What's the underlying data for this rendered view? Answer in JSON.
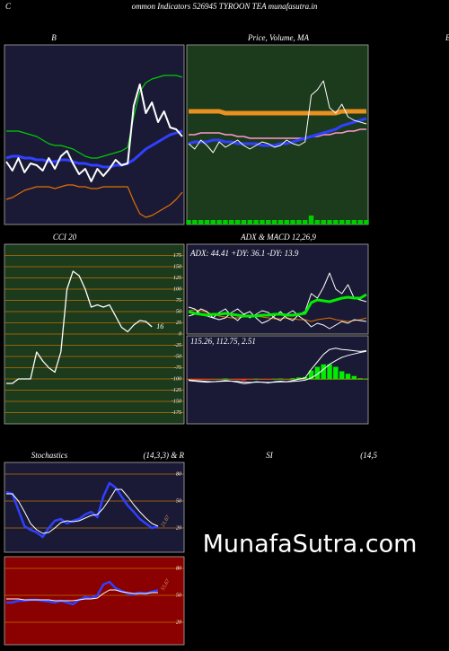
{
  "header": {
    "lead": "C",
    "title": "ommon  Indicators 526945 TYROON  TEA munafasutra.in",
    "edge": "B"
  },
  "watermark": "MunafaSutra.com",
  "chart_data": [
    {
      "type": "line",
      "title": "B",
      "ylim": [
        0,
        100
      ],
      "series": [
        {
          "color": "#00cc00",
          "width": 1.2,
          "values": [
            52,
            52,
            52,
            51,
            50,
            49,
            47,
            45,
            44,
            44,
            43,
            42,
            40,
            38,
            37,
            37,
            38,
            39,
            40,
            41,
            43,
            60,
            74,
            79,
            81,
            82,
            83,
            83,
            83,
            82
          ]
        },
        {
          "color": "#e07000",
          "width": 1.2,
          "values": [
            14,
            15,
            17,
            19,
            20,
            21,
            21,
            21,
            20,
            21,
            22,
            22,
            21,
            21,
            20,
            20,
            21,
            21,
            21,
            21,
            21,
            13,
            6,
            4,
            5,
            7,
            9,
            11,
            14,
            18
          ]
        },
        {
          "color": "#3040ff",
          "width": 3,
          "values": [
            37,
            38,
            38,
            37,
            37,
            36,
            36,
            35,
            35,
            36,
            36,
            35,
            34,
            34,
            33,
            33,
            32,
            32,
            33,
            33,
            34,
            36,
            39,
            42,
            44,
            46,
            48,
            50,
            51,
            52
          ]
        },
        {
          "color": "#ffffff",
          "width": 2,
          "values": [
            35,
            30,
            37,
            29,
            34,
            33,
            30,
            37,
            31,
            38,
            41,
            34,
            28,
            31,
            24,
            31,
            27,
            31,
            36,
            33,
            34,
            66,
            78,
            62,
            68,
            57,
            63,
            54,
            53,
            49
          ]
        }
      ]
    },
    {
      "type": "line",
      "title": "Price,  Volume, MA",
      "ylim": [
        0,
        100
      ],
      "y2lim": [
        0,
        40
      ],
      "series": [
        {
          "color": "#00cc00",
          "type": "bar",
          "axis": "y2",
          "values": [
            1,
            1,
            1,
            1,
            1,
            1,
            1,
            1,
            1,
            1,
            1,
            1,
            1,
            1,
            1,
            1,
            1,
            1,
            1,
            1,
            2,
            1,
            1,
            1,
            1,
            1,
            1,
            1,
            1,
            1
          ]
        },
        {
          "color": "#e89020",
          "width": 5,
          "values": [
            63,
            63,
            63,
            63,
            63,
            63,
            62,
            62,
            62,
            62,
            62,
            62,
            62,
            62,
            62,
            62,
            62,
            62,
            62,
            62,
            62,
            62,
            62,
            62,
            62,
            63,
            63,
            63,
            63,
            63
          ]
        },
        {
          "color": "#ff9ad0",
          "width": 1.5,
          "values": [
            50,
            50,
            51,
            51,
            51,
            51,
            50,
            50,
            49,
            49,
            48,
            48,
            48,
            48,
            48,
            48,
            48,
            48,
            48,
            48,
            49,
            49,
            50,
            50,
            51,
            51,
            52,
            52,
            53,
            53
          ]
        },
        {
          "color": "#3040ff",
          "width": 3,
          "values": [
            45,
            46,
            46,
            46,
            47,
            47,
            46,
            46,
            45,
            45,
            45,
            45,
            44,
            44,
            44,
            45,
            45,
            46,
            47,
            48,
            49,
            50,
            51,
            52,
            53,
            55,
            56,
            57,
            58,
            59
          ]
        },
        {
          "color": "#ffffff",
          "width": 1,
          "values": [
            45,
            42,
            47,
            44,
            40,
            46,
            43,
            45,
            47,
            44,
            42,
            44,
            46,
            45,
            43,
            44,
            47,
            45,
            44,
            46,
            72,
            75,
            80,
            65,
            62,
            67,
            60,
            58,
            57,
            56
          ]
        }
      ]
    },
    {
      "type": "line",
      "title": "CCI 20",
      "ylim": [
        -200,
        200
      ],
      "grid": true,
      "grid_color": "#c07000",
      "end_label": "plain",
      "yticks": [
        175,
        150,
        125,
        100,
        75,
        50,
        25,
        0,
        -25,
        -50,
        -75,
        -100,
        -125,
        -150,
        -175
      ],
      "series": [
        {
          "color": "#ffffff",
          "width": 1.3,
          "values": [
            -110,
            -110,
            -100,
            -100,
            -100,
            -40,
            -60,
            -75,
            -85,
            -40,
            100,
            140,
            130,
            100,
            60,
            65,
            60,
            65,
            40,
            15,
            5,
            20,
            30,
            28,
            16
          ]
        }
      ]
    },
    {
      "type": "line",
      "title": "ADX  & MACD 12,26,9",
      "annotation": "ADX: 44.41  +DY: 36.1  -DY: 13.9",
      "ylim": [
        0,
        100
      ],
      "series": [
        {
          "color": "#e07000",
          "width": 1,
          "values": [
            26,
            27,
            26,
            24,
            22,
            20,
            19,
            18,
            18,
            19,
            20,
            20,
            19,
            18,
            17,
            17,
            18,
            17,
            16,
            16,
            14,
            16,
            17,
            18,
            16,
            15,
            14,
            15,
            16,
            18
          ]
        },
        {
          "color": "#ffffff",
          "width": 1,
          "values": [
            30,
            28,
            22,
            20,
            18,
            24,
            28,
            20,
            15,
            22,
            25,
            18,
            12,
            15,
            20,
            25,
            18,
            15,
            22,
            25,
            45,
            40,
            52,
            68,
            50,
            45,
            55,
            40,
            38,
            36
          ]
        },
        {
          "color": "#ffffff",
          "width": 1,
          "values": [
            20,
            22,
            28,
            25,
            18,
            16,
            18,
            24,
            28,
            22,
            18,
            22,
            26,
            24,
            18,
            15,
            22,
            26,
            20,
            15,
            8,
            12,
            10,
            6,
            10,
            14,
            12,
            16,
            15,
            14
          ]
        },
        {
          "color": "#00ee00",
          "width": 3,
          "values": [
            25,
            23,
            22,
            21,
            22,
            22,
            23,
            22,
            21,
            20,
            20,
            20,
            21,
            21,
            22,
            22,
            21,
            21,
            22,
            23,
            35,
            38,
            37,
            36,
            38,
            40,
            41,
            40,
            40,
            44
          ]
        }
      ]
    },
    {
      "type": "line",
      "annotation": "115.26,  112.75,  2.51",
      "ylim": [
        -180,
        175
      ],
      "zero_line": "#e07000",
      "series": [
        {
          "color": "#00ee00",
          "negative_color": "#ff2020",
          "type": "bar",
          "values": [
            -2,
            -3,
            -3,
            -3,
            0,
            1,
            3,
            0,
            -3,
            -6,
            -2,
            2,
            0,
            -2,
            2,
            3,
            1,
            4,
            7,
            9,
            35,
            50,
            60,
            60,
            50,
            32,
            22,
            13,
            4,
            2.51
          ]
        },
        {
          "color": "#ffffff",
          "width": 1,
          "values": [
            -3,
            -5,
            -7,
            -9,
            -10,
            -9,
            -8,
            -8,
            -9,
            -12,
            -13,
            -12,
            -12,
            -13,
            -12,
            -11,
            -11,
            -9,
            -7,
            -4,
            5,
            20,
            40,
            60,
            75,
            88,
            96,
            102,
            108,
            112.75
          ]
        },
        {
          "color": "#ffffff",
          "width": 1,
          "values": [
            -5,
            -8,
            -10,
            -12,
            -10,
            -8,
            -5,
            -8,
            -12,
            -18,
            -15,
            -10,
            -12,
            -15,
            -10,
            -8,
            -10,
            -5,
            0,
            5,
            40,
            70,
            100,
            120,
            125,
            120,
            118,
            115,
            112,
            115.26
          ]
        }
      ]
    },
    {
      "type": "line",
      "title": "Stochastics",
      "subtitle": "(14,3,3) & R",
      "ylim": [
        -7,
        93
      ],
      "grid": true,
      "grid_color": "#c07000",
      "end_label": "rotated",
      "yticks": [
        80,
        50,
        20
      ],
      "series": [
        {
          "color": "#3040ff",
          "width": 2.5,
          "values": [
            60,
            58,
            40,
            22,
            18,
            15,
            10,
            20,
            28,
            30,
            25,
            28,
            30,
            35,
            38,
            32,
            55,
            70,
            65,
            55,
            45,
            38,
            30,
            25,
            20,
            21.67
          ]
        },
        {
          "color": "#ffffff",
          "width": 1,
          "values": [
            58,
            58,
            50,
            38,
            25,
            18,
            14,
            15,
            20,
            26,
            28,
            27,
            28,
            31,
            34,
            35,
            42,
            52,
            63,
            63,
            55,
            46,
            38,
            31,
            25,
            22
          ]
        }
      ]
    },
    {
      "type": "line",
      "title": "SI",
      "subtitle": "(14,5",
      "ylim": [
        -5,
        93
      ],
      "grid": true,
      "grid_color": "#c07000",
      "end_label": "rotated",
      "yticks": [
        80,
        50,
        20
      ],
      "series": [
        {
          "color": "#3040ff",
          "width": 2.5,
          "values": [
            42,
            42,
            44,
            44,
            45,
            45,
            44,
            43,
            42,
            44,
            42,
            40,
            45,
            48,
            47,
            50,
            62,
            65,
            58,
            55,
            52,
            51,
            53,
            52,
            54,
            55.67
          ]
        },
        {
          "color": "#ffffff",
          "width": 1,
          "values": [
            46,
            46,
            46,
            45,
            45,
            45,
            45,
            45,
            44,
            44,
            44,
            44,
            45,
            46,
            46,
            47,
            52,
            56,
            56,
            54,
            53,
            52,
            52,
            52,
            53,
            53
          ]
        }
      ]
    }
  ]
}
